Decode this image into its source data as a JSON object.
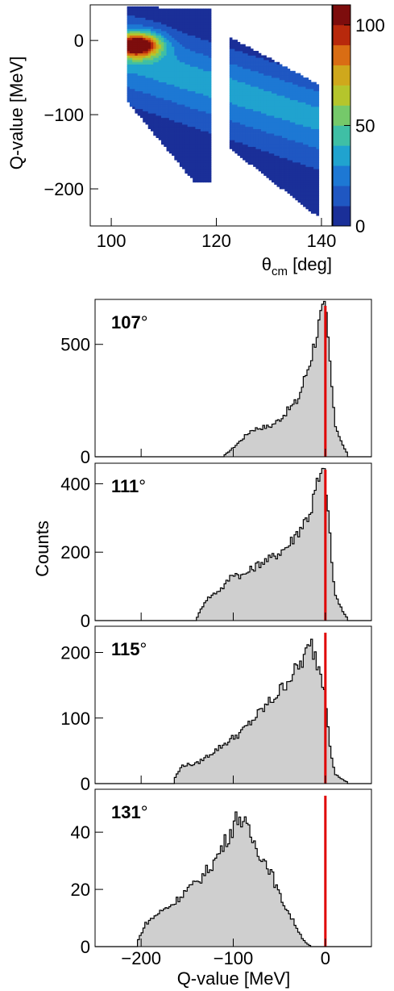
{
  "chart_data": [
    {
      "type": "heatmap",
      "xlabel": "θcm [deg]",
      "xlabel_main": "θ",
      "xlabel_sub": "cm",
      "xlabel_unit": " [deg]",
      "ylabel": "Q-value [MeV]",
      "xlim": [
        96,
        142
      ],
      "ylim": [
        -250,
        48
      ],
      "xticks": [
        100,
        120,
        140
      ],
      "yticks": [
        0,
        -100,
        -200
      ],
      "xtick_labels": [
        "100",
        "120",
        "140"
      ],
      "ytick_labels": [
        "0",
        "−100",
        "−200"
      ],
      "colorbar": {
        "min": 0,
        "max": 110,
        "levels": 11,
        "tick_values": [
          0,
          50,
          100
        ],
        "tick_labels": [
          "0",
          "50",
          "100"
        ],
        "colors": [
          "#1a2f98",
          "#1f57c2",
          "#1d78d4",
          "#20a3cf",
          "#3fbfa5",
          "#75c96a",
          "#b5c52c",
          "#cfa81c",
          "#d96d14",
          "#b8290c",
          "#7d0d0d"
        ]
      },
      "regions": [
        {
          "x_range": [
            103,
            119
          ],
          "description_levels": "peak near x≈105, y≈-5"
        },
        {
          "x_range": [
            122.5,
            139.5
          ]
        }
      ]
    },
    {
      "type": "area",
      "xlabel": "Q-value [MeV]",
      "ylabel": "Counts",
      "xlim": [
        -250,
        50
      ],
      "xticks": [
        -200,
        -100,
        0
      ],
      "xtick_labels": [
        "−200",
        "−100",
        "0"
      ],
      "marker_line_x": 0,
      "marker_color": "#e00000",
      "fill_color": "#cfcfcf",
      "panels": [
        {
          "label": "107",
          "deg": "°",
          "ylim": [
            0,
            700
          ],
          "yticks": [
            0,
            500
          ],
          "ytick_labels": [
            "0",
            "500"
          ],
          "x": [
            -110,
            -100,
            -90,
            -80,
            -70,
            -60,
            -50,
            -40,
            -30,
            -20,
            -15,
            -10,
            -5,
            0,
            5,
            10,
            20,
            25
          ],
          "y": [
            5,
            40,
            80,
            120,
            130,
            135,
            165,
            210,
            250,
            380,
            450,
            540,
            620,
            660,
            420,
            150,
            40,
            10
          ]
        },
        {
          "label": "111",
          "deg": "°",
          "ylim": [
            0,
            460
          ],
          "yticks": [
            0,
            200,
            400
          ],
          "ytick_labels": [
            "0",
            "200",
            "400"
          ],
          "x": [
            -140,
            -130,
            -120,
            -110,
            -100,
            -90,
            -80,
            -70,
            -60,
            -50,
            -40,
            -30,
            -20,
            -15,
            -10,
            -5,
            0,
            5,
            10,
            20,
            25
          ],
          "y": [
            5,
            60,
            80,
            100,
            140,
            130,
            150,
            170,
            180,
            200,
            220,
            260,
            300,
            330,
            390,
            420,
            430,
            240,
            80,
            20,
            5
          ]
        },
        {
          "label": "115",
          "deg": "°",
          "ylim": [
            0,
            240
          ],
          "yticks": [
            0,
            100,
            200
          ],
          "ytick_labels": [
            "0",
            "100",
            "200"
          ],
          "x": [
            -165,
            -155,
            -140,
            -130,
            -120,
            -110,
            -100,
            -90,
            -80,
            -70,
            -60,
            -50,
            -40,
            -30,
            -20,
            -15,
            -10,
            -5,
            0,
            5,
            10,
            20,
            25
          ],
          "y": [
            5,
            28,
            30,
            40,
            50,
            60,
            70,
            80,
            95,
            110,
            125,
            140,
            160,
            175,
            200,
            210,
            190,
            170,
            140,
            60,
            15,
            5,
            2
          ]
        },
        {
          "label": "131",
          "deg": "°",
          "ylim": [
            0,
            55
          ],
          "yticks": [
            0,
            20,
            40
          ],
          "ytick_labels": [
            "0",
            "20",
            "40"
          ],
          "x": [
            -205,
            -195,
            -180,
            -165,
            -150,
            -140,
            -130,
            -120,
            -110,
            -100,
            -95,
            -90,
            -80,
            -70,
            -60,
            -50,
            -40,
            -30,
            -25,
            -20,
            -15
          ],
          "y": [
            1,
            8,
            12,
            15,
            20,
            22,
            26,
            30,
            36,
            42,
            46,
            44,
            38,
            32,
            27,
            18,
            12,
            6,
            3,
            1,
            0
          ]
        }
      ]
    }
  ]
}
